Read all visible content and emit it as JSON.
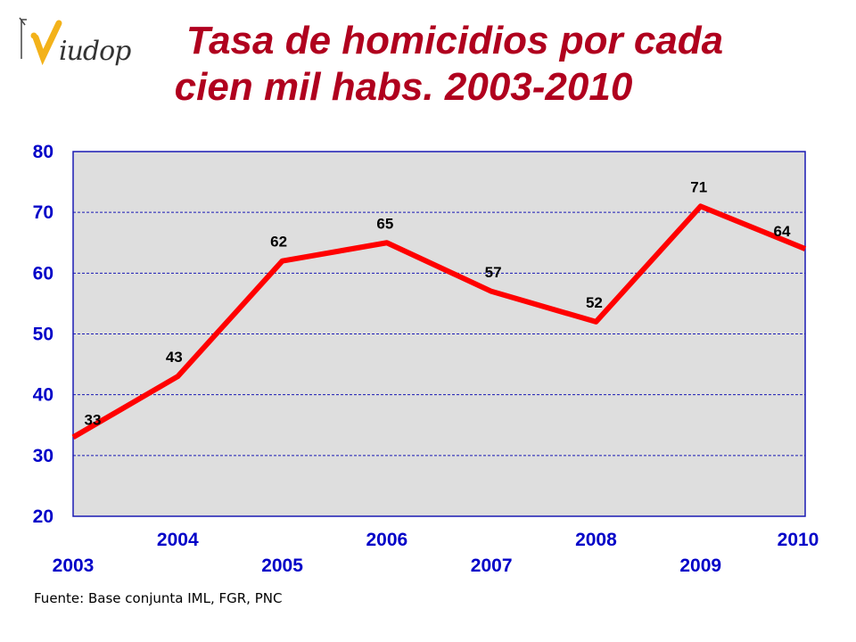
{
  "logo": {
    "text": "iudop"
  },
  "title": {
    "line1": "Tasa de homicidios por cada",
    "line2": "cien mil habs. 2003-2010"
  },
  "source": "Fuente: Base conjunta IML, FGR, PNC",
  "colors": {
    "title": "#b0001e",
    "line": "#ff0000",
    "axis_text": "#0000c8",
    "plot_bg": "#dedede",
    "grid": "#1a1ab4"
  },
  "chart_data": {
    "type": "line",
    "title": "Tasa de homicidios por cada cien mil habs. 2003-2010",
    "x": [
      "2003",
      "2004",
      "2005",
      "2006",
      "2007",
      "2008",
      "2009",
      "2010"
    ],
    "series": [
      {
        "values": [
          33,
          43,
          62,
          65,
          57,
          52,
          71,
          64
        ]
      }
    ],
    "data_labels": [
      "33",
      "43",
      "62",
      "65",
      "57",
      "52",
      "71",
      "64"
    ],
    "ylim": [
      20,
      80
    ],
    "yticks": [
      20,
      30,
      40,
      50,
      60,
      70,
      80
    ],
    "grid": true,
    "legend": "none"
  }
}
